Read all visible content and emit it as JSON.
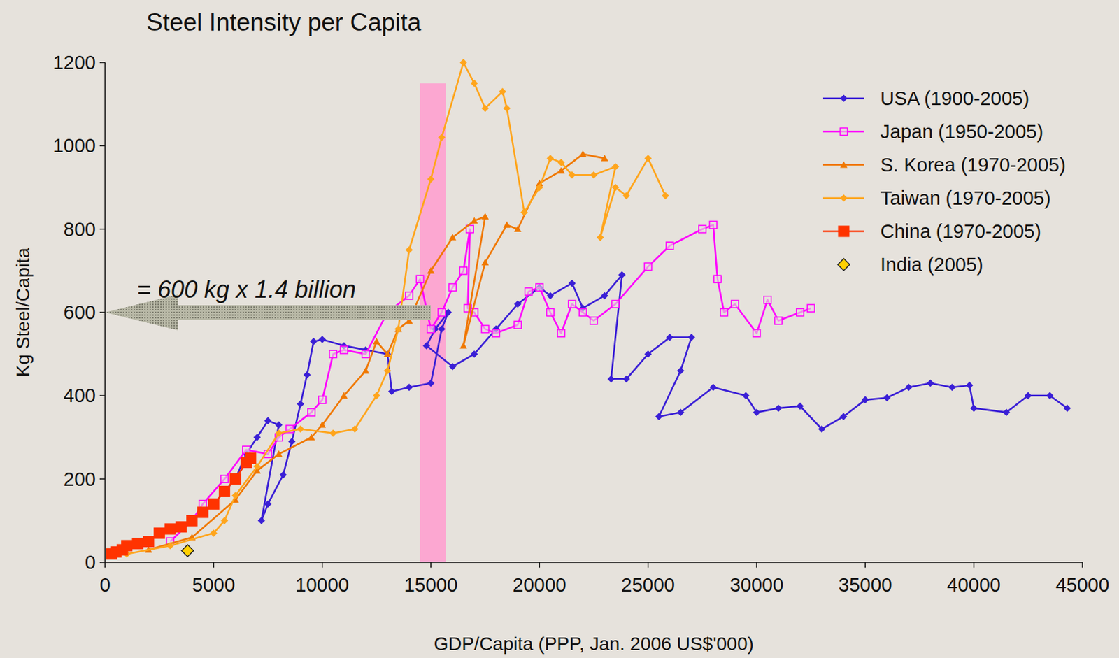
{
  "chart_data": {
    "type": "line",
    "title": "Steel Intensity per Capita",
    "x_label": "GDP/Capita (PPP, Jan. 2006 US$'000)",
    "y_label": "Kg Steel/Capita",
    "xlim": [
      0,
      45000
    ],
    "ylim": [
      0,
      1200
    ],
    "xticks": [
      0,
      5000,
      10000,
      15000,
      20000,
      25000,
      30000,
      35000,
      40000,
      45000
    ],
    "yticks": [
      0,
      200,
      400,
      600,
      800,
      1000,
      1200
    ],
    "grid": false,
    "legend": "top-right",
    "highlight_band": {
      "xlim": [
        14500,
        15700
      ],
      "ytop": 1150,
      "color": "#ff9ccf"
    },
    "annotations": [
      {
        "text": "= 600 kg x 1.4 billion",
        "x": 15000,
        "y": 600
      }
    ],
    "series": [
      {
        "name": "USA (1900-2005)",
        "color": "#3a1fd6",
        "marker": "diamond",
        "line_style": "solid",
        "x": [
          5500,
          6000,
          6500,
          7000,
          7500,
          8000,
          7200,
          7500,
          8200,
          8600,
          9000,
          9300,
          9600,
          10000,
          11000,
          12000,
          13000,
          13200,
          14000,
          15000,
          15500,
          15800,
          15200,
          14800,
          16000,
          17000,
          18000,
          19000,
          20000,
          20500,
          21500,
          22000,
          23000,
          23800,
          23300,
          24000,
          25000,
          26000,
          27000,
          26500,
          25500,
          26500,
          28000,
          29500,
          30000,
          31000,
          32000,
          33000,
          34000,
          35000,
          36000,
          37000,
          38000,
          39000,
          39800,
          40000,
          41500,
          42500,
          43500,
          44300
        ],
        "values": [
          170,
          200,
          260,
          300,
          340,
          330,
          100,
          140,
          210,
          290,
          380,
          450,
          530,
          535,
          520,
          510,
          500,
          410,
          420,
          430,
          560,
          600,
          560,
          520,
          470,
          500,
          560,
          620,
          660,
          640,
          670,
          610,
          640,
          690,
          440,
          440,
          500,
          540,
          540,
          460,
          350,
          360,
          420,
          400,
          360,
          370,
          375,
          320,
          350,
          390,
          395,
          420,
          430,
          420,
          425,
          370,
          360,
          400,
          400,
          370
        ]
      },
      {
        "name": "Japan (1950-2005)",
        "color": "#ff00ff",
        "marker": "square-open",
        "line_style": "solid",
        "x": [
          3000,
          4000,
          4500,
          5500,
          6500,
          7500,
          8000,
          8500,
          9500,
          10000,
          10500,
          11000,
          12000,
          13000,
          14000,
          14500,
          15000,
          15500,
          16000,
          16500,
          16800,
          16700,
          17000,
          17500,
          18000,
          19000,
          19500,
          20000,
          20500,
          21000,
          21500,
          22000,
          22500,
          23500,
          25000,
          26000,
          27500,
          28000,
          28200,
          28500,
          29000,
          30000,
          30500,
          31000,
          32000,
          32500
        ],
        "values": [
          50,
          100,
          140,
          200,
          270,
          260,
          300,
          320,
          360,
          390,
          500,
          510,
          500,
          600,
          640,
          680,
          560,
          600,
          660,
          700,
          800,
          610,
          600,
          560,
          550,
          570,
          650,
          660,
          600,
          550,
          620,
          600,
          580,
          620,
          710,
          760,
          800,
          810,
          680,
          600,
          620,
          550,
          630,
          580,
          600,
          610
        ]
      },
      {
        "name": "S. Korea (1970-2005)",
        "color": "#f07800",
        "marker": "triangle",
        "line_style": "solid",
        "x": [
          2000,
          4000,
          6000,
          7000,
          8000,
          9500,
          10000,
          11000,
          12000,
          12500,
          13000,
          13500,
          14000,
          15000,
          16000,
          17000,
          17500,
          16500,
          17500,
          18500,
          19000,
          20000,
          21000,
          22000,
          23000
        ],
        "values": [
          30,
          60,
          150,
          220,
          260,
          300,
          330,
          400,
          460,
          530,
          500,
          560,
          580,
          700,
          780,
          820,
          830,
          520,
          720,
          810,
          800,
          910,
          940,
          980,
          970
        ]
      },
      {
        "name": "Taiwan (1970-2005)",
        "color": "#ffa51c",
        "marker": "diamond",
        "line_style": "solid",
        "x": [
          1000,
          3000,
          5000,
          5500,
          6000,
          7000,
          8000,
          9000,
          10500,
          11500,
          12500,
          13000,
          13500,
          14000,
          15000,
          15500,
          16500,
          17000,
          17500,
          18300,
          18500,
          19300,
          20000,
          20500,
          21000,
          21500,
          22500,
          23500,
          22800,
          23500,
          24000,
          25000,
          25800
        ],
        "values": [
          20,
          40,
          70,
          100,
          160,
          230,
          310,
          320,
          310,
          320,
          400,
          460,
          560,
          750,
          920,
          1020,
          1200,
          1150,
          1090,
          1130,
          1090,
          840,
          900,
          970,
          960,
          930,
          930,
          950,
          780,
          900,
          880,
          970,
          880
        ]
      },
      {
        "name": "China (1970-2005)",
        "color": "#ff3300",
        "marker": "square",
        "line_style": "solid",
        "x": [
          300,
          500,
          800,
          1000,
          1500,
          2000,
          2500,
          3000,
          3500,
          4000,
          4500,
          5000,
          5500,
          6000,
          6500,
          6700
        ],
        "values": [
          20,
          25,
          30,
          40,
          45,
          50,
          70,
          80,
          85,
          100,
          120,
          140,
          170,
          200,
          240,
          250
        ]
      },
      {
        "name": "India (2005)",
        "color": "#ffd000",
        "marker": "diamond",
        "type": "scatter",
        "x": [
          3800
        ],
        "values": [
          28
        ]
      }
    ]
  }
}
